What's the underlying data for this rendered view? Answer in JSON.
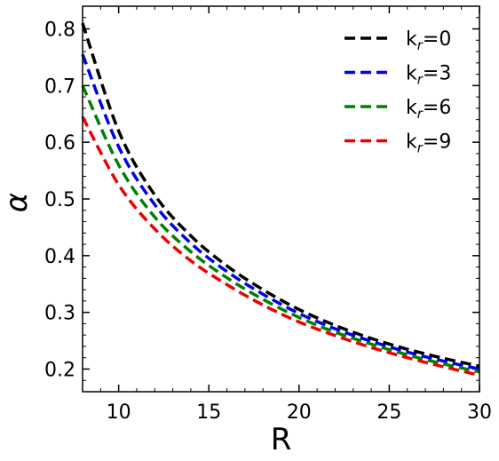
{
  "chart_data": {
    "type": "line",
    "title": "",
    "xlabel": "R",
    "ylabel": "α",
    "xlim": [
      8,
      30
    ],
    "ylim": [
      0.16,
      0.84
    ],
    "x_ticks": [
      10,
      15,
      20,
      25,
      30
    ],
    "x_tick_labels": [
      "10",
      "15",
      "20",
      "25",
      "30"
    ],
    "y_ticks": [
      0.2,
      0.3,
      0.4,
      0.5,
      0.6,
      0.7,
      0.8
    ],
    "y_tick_labels": [
      "0.2",
      "0.3",
      "0.4",
      "0.5",
      "0.6",
      "0.7",
      "0.8"
    ],
    "grid": false,
    "legend_position": "top-right",
    "line_style": "dashed",
    "x": [
      8,
      10,
      12,
      14,
      16,
      18,
      20,
      22,
      24,
      26,
      28,
      30
    ],
    "series": [
      {
        "name": "k_r=0",
        "legend_main": "k",
        "legend_sub": "r",
        "legend_tail": "=0",
        "color": "#000000",
        "values": [
          0.81,
          0.62,
          0.507,
          0.435,
          0.382,
          0.34,
          0.305,
          0.277,
          0.254,
          0.235,
          0.219,
          0.205
        ]
      },
      {
        "name": "k_r=3",
        "legend_main": "k",
        "legend_sub": "r",
        "legend_tail": "=3",
        "color": "#0000ee",
        "values": [
          0.755,
          0.592,
          0.49,
          0.422,
          0.372,
          0.332,
          0.298,
          0.271,
          0.249,
          0.23,
          0.214,
          0.2
        ]
      },
      {
        "name": "k_r=6",
        "legend_main": "k",
        "legend_sub": "r",
        "legend_tail": "=6",
        "color": "#008000",
        "values": [
          0.7,
          0.56,
          0.468,
          0.407,
          0.361,
          0.323,
          0.291,
          0.265,
          0.244,
          0.225,
          0.209,
          0.195
        ]
      },
      {
        "name": "k_r=9",
        "legend_main": "k",
        "legend_sub": "r",
        "legend_tail": "=9",
        "color": "#ee0000",
        "values": [
          0.645,
          0.525,
          0.447,
          0.391,
          0.349,
          0.313,
          0.283,
          0.259,
          0.238,
          0.22,
          0.204,
          0.189
        ]
      }
    ]
  }
}
